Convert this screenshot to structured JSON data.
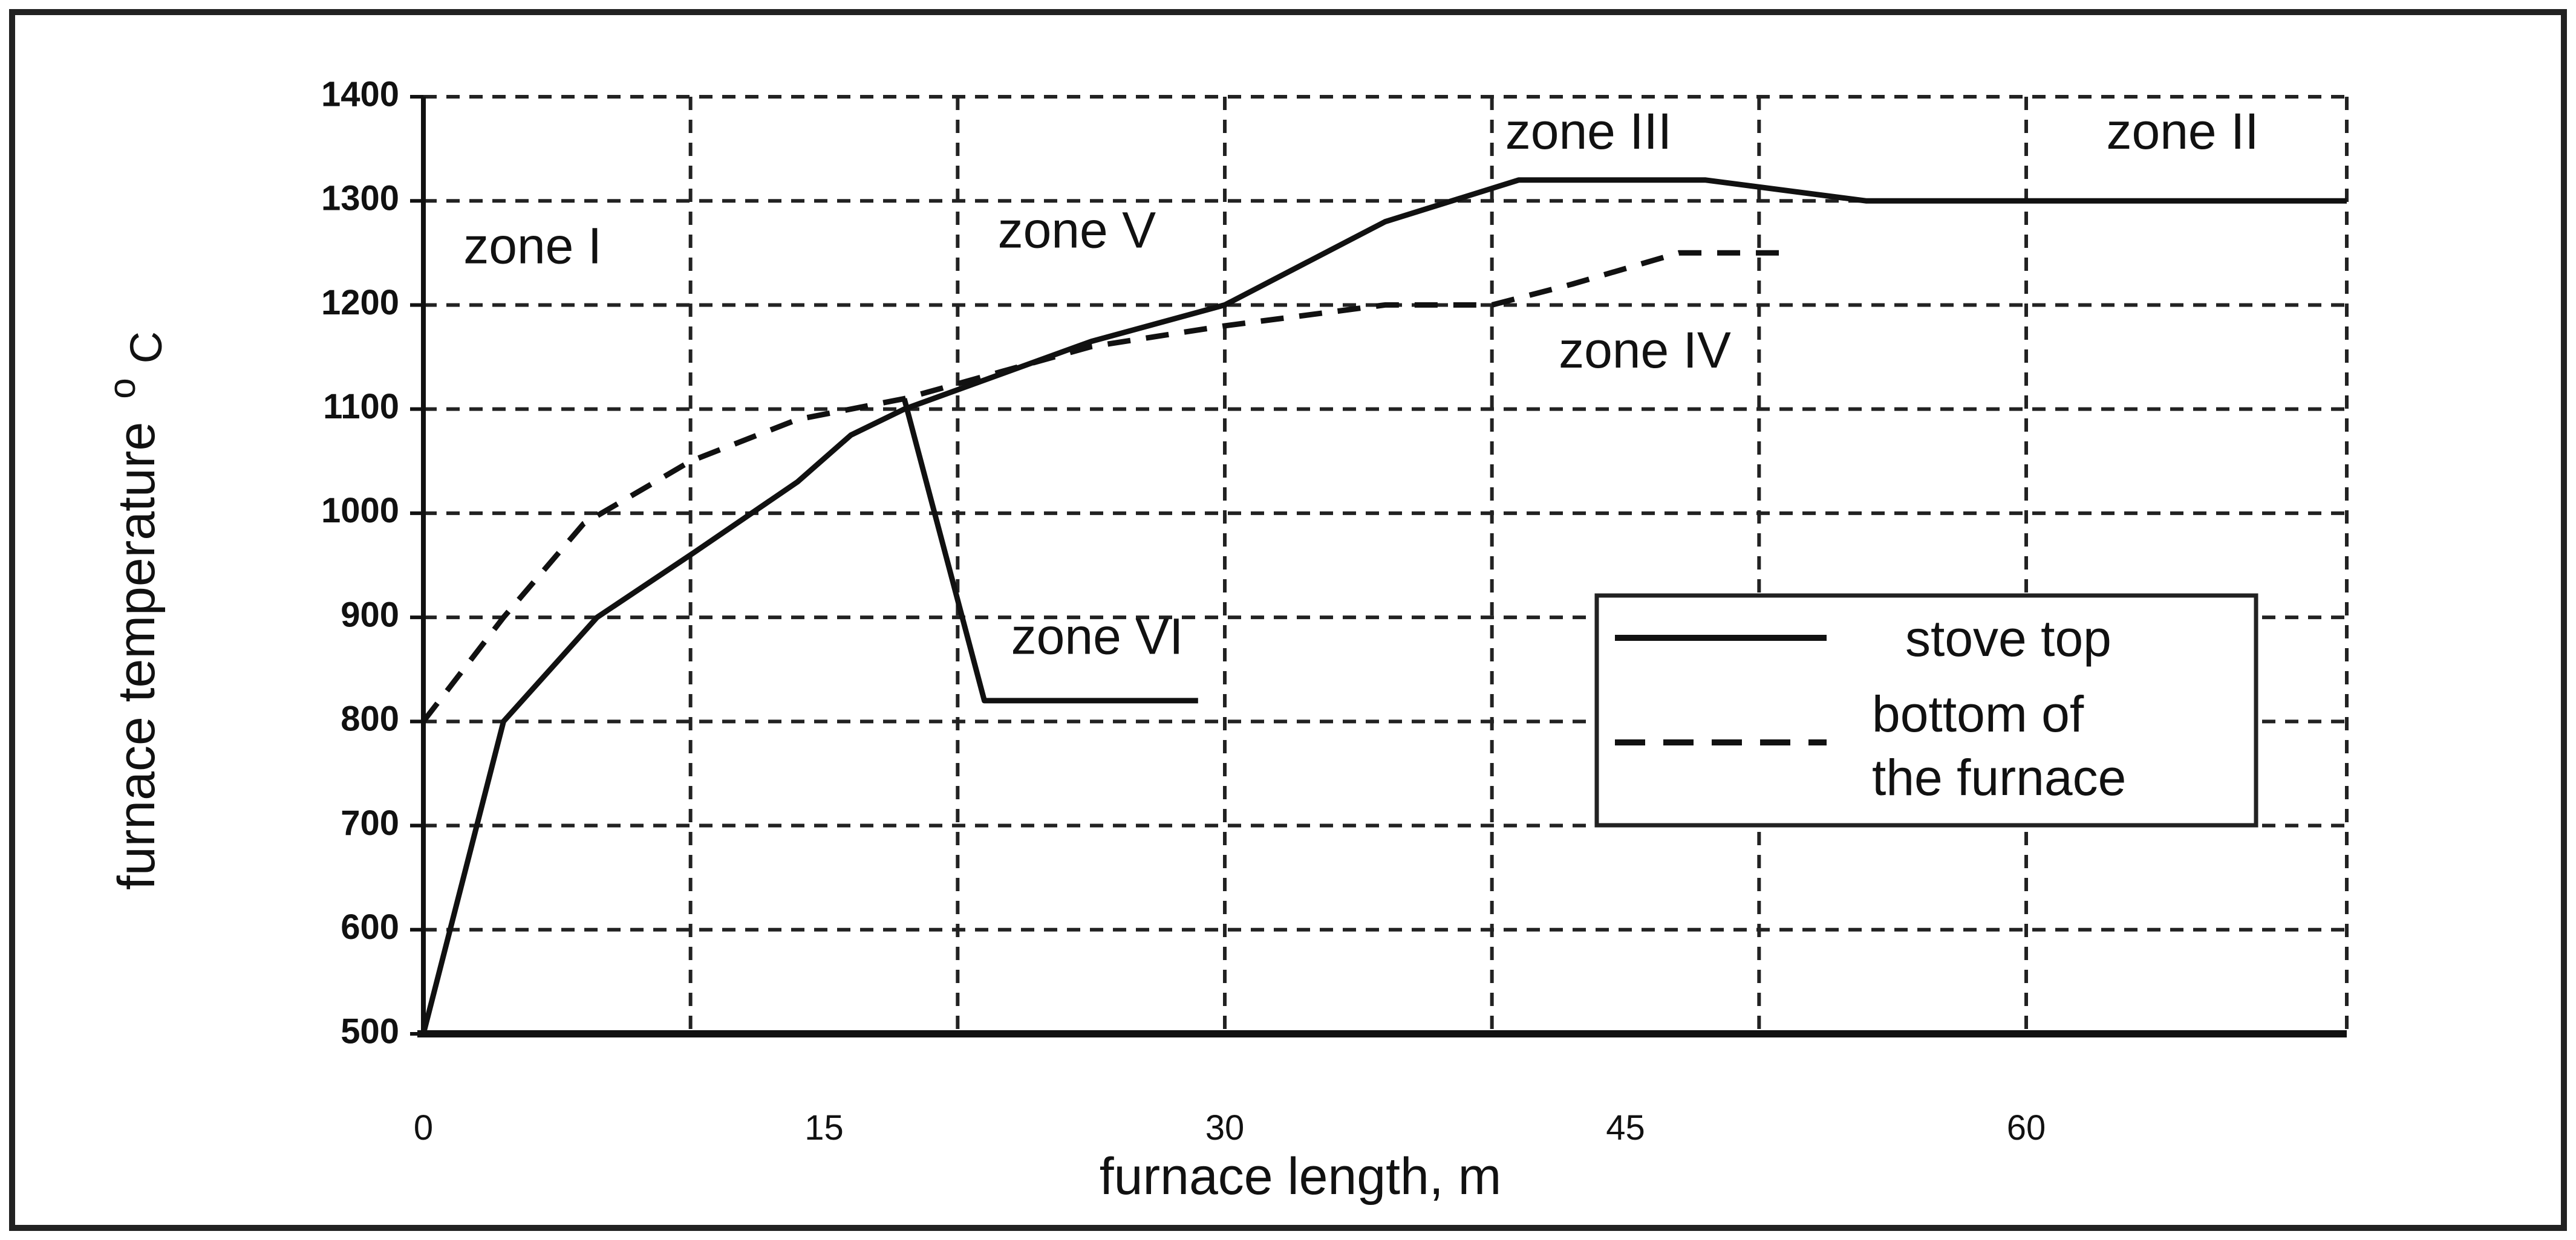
{
  "chart_data": {
    "type": "line",
    "title": "",
    "xlabel": "furnace length, m",
    "ylabel": "furnace temperature",
    "ylabel_unit": "°C",
    "ylabel_unit_superscript": "o",
    "ylabel_unit_subscript": "C",
    "xlim": [
      0,
      72
    ],
    "ylim": [
      500,
      1400
    ],
    "x_ticks": [
      0,
      15,
      30,
      45,
      60
    ],
    "x_tick_labels": [
      "0",
      "15",
      "30",
      "45",
      "60"
    ],
    "x_grid": [
      0,
      10,
      20,
      30,
      40,
      50,
      60,
      72
    ],
    "y_ticks": [
      500,
      600,
      700,
      800,
      900,
      1000,
      1100,
      1200,
      1300,
      1400
    ],
    "y_tick_labels": [
      "500",
      "600",
      "700",
      "800",
      "900",
      "1000",
      "1100",
      "1200",
      "1300",
      "1400"
    ],
    "grid": true,
    "legend_position": "right-middle",
    "series": [
      {
        "name": "stove top",
        "style": "solid",
        "points": [
          [
            0,
            500
          ],
          [
            3,
            800
          ],
          [
            6.5,
            900
          ],
          [
            10,
            960
          ],
          [
            14,
            1030
          ],
          [
            16,
            1075
          ],
          [
            18,
            1100
          ],
          [
            25,
            1165
          ],
          [
            30,
            1200
          ],
          [
            36,
            1280
          ],
          [
            41,
            1320
          ],
          [
            48,
            1320
          ],
          [
            54,
            1300
          ],
          [
            72,
            1300
          ]
        ]
      },
      {
        "name": "bottom of the furnace",
        "style": "dashed",
        "points": [
          [
            0,
            800
          ],
          [
            3,
            900
          ],
          [
            6,
            990
          ],
          [
            10,
            1050
          ],
          [
            14,
            1090
          ],
          [
            18,
            1110
          ],
          [
            25,
            1160
          ],
          [
            30,
            1180
          ],
          [
            36,
            1200
          ],
          [
            40,
            1200
          ],
          [
            43,
            1220
          ],
          [
            47,
            1250
          ],
          [
            51,
            1250
          ]
        ]
      },
      {
        "name": "",
        "style": "solid",
        "points": [
          [
            18,
            1110
          ],
          [
            21,
            820
          ],
          [
            29,
            820
          ]
        ]
      }
    ],
    "annotations": [
      {
        "text": "zone I",
        "x": 1.5,
        "y": 1240
      },
      {
        "text": "zone V",
        "x": 21.5,
        "y": 1255
      },
      {
        "text": "zone III",
        "x": 40.5,
        "y": 1350
      },
      {
        "text": "zone II",
        "x": 63,
        "y": 1350
      },
      {
        "text": "zone IV",
        "x": 42.5,
        "y": 1140
      },
      {
        "text": "zone VI",
        "x": 22,
        "y": 865
      }
    ],
    "legend_labels": [
      "stove top",
      "bottom of",
      "the furnace"
    ]
  }
}
